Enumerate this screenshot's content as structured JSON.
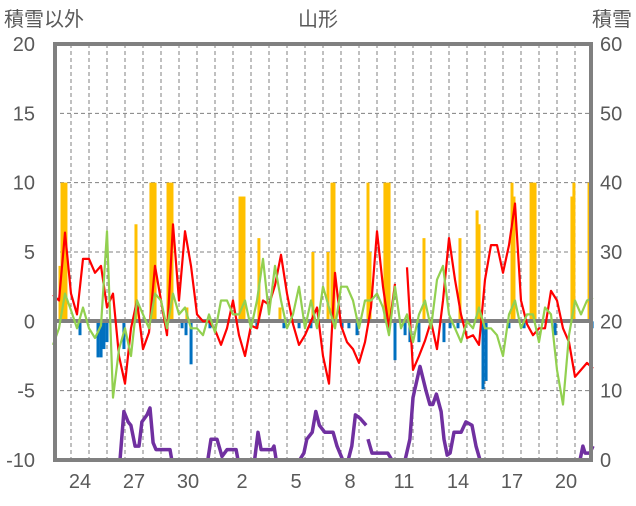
{
  "chart_data": {
    "type": "bar+line",
    "title": "山形",
    "left_axis_label": "積雪以外",
    "right_axis_label": "積雪",
    "left_ylim": [
      -10,
      20
    ],
    "right_ylim": [
      0,
      60
    ],
    "left_ticks": [
      "20",
      "15",
      "10",
      "5",
      "0",
      "-5",
      "-10"
    ],
    "right_ticks": [
      "60",
      "50",
      "40",
      "30",
      "20",
      "10",
      "0"
    ],
    "x_range_days": [
      0,
      30
    ],
    "x_tick_labels": [
      "24",
      "27",
      "30",
      "2",
      "5",
      "8",
      "11",
      "14",
      "17",
      "20"
    ],
    "x_tick_day_offsets": [
      1.5,
      4.5,
      7.5,
      10.5,
      13.5,
      16.5,
      19.5,
      22.5,
      25.5,
      28.5
    ],
    "grid": true,
    "colors": {
      "red": "#ff0000",
      "green": "#92d050",
      "orange": "#ffc000",
      "blue": "#0070c0",
      "purple": "#7030a0",
      "axis": "#808080"
    },
    "series": [
      {
        "name": "red-line",
        "axis": "left",
        "values": [
          1.9,
          1.5,
          6.4,
          2,
          0.5,
          4.5,
          4.5,
          3.5,
          4,
          1,
          2,
          -2.5,
          -4.5,
          -0.5,
          1.5,
          -2,
          -0.8,
          4,
          1.5,
          -1,
          7,
          1.5,
          6.5,
          4,
          0.5,
          0,
          0,
          -0.6,
          -1.7,
          -0.5,
          1.5,
          -1,
          -2.5,
          -0.3,
          -0.5,
          1.5,
          1.2,
          2.6,
          4.8,
          2,
          -0.2,
          -1.7,
          -1,
          0,
          1,
          -2.5,
          -4.5,
          3.5,
          -0.3,
          -1.5,
          -2,
          -3,
          -1.5,
          1,
          6.5,
          2.5,
          -0.5,
          2.7,
          null,
          3.9,
          -3.5,
          -2.5,
          -1.4,
          0,
          -2,
          1.5,
          6,
          3,
          0.5,
          -1.2,
          -1,
          -1.7,
          3,
          5.5,
          5.5,
          3.5,
          5.5,
          8.5,
          1.5,
          -0.2,
          -1,
          -0.5,
          -0.5,
          2.2,
          1.5,
          -0.5,
          -1.5,
          -4,
          -3.5,
          -3,
          -3.4
        ]
      },
      {
        "name": "green-line",
        "axis": "left",
        "values": [
          -1.7,
          -0.5,
          2,
          0.8,
          -0.5,
          1,
          -0.5,
          -1.2,
          -0.3,
          6.5,
          -5.5,
          -2,
          -0.5,
          -2.5,
          1.5,
          0.5,
          -0.5,
          2,
          1.5,
          -0.5,
          2,
          0.5,
          1,
          -0.5,
          -0.5,
          -1,
          0.5,
          -0.8,
          1.5,
          1.5,
          0.5,
          0.5,
          1.5,
          -0.5,
          1.5,
          4.5,
          0.5,
          4,
          1.5,
          -0.5,
          0.5,
          2.5,
          -0.5,
          1.5,
          -0.5,
          2.5,
          1,
          -0.5,
          2.5,
          2.5,
          1.5,
          -0.5,
          1.5,
          1.5,
          2,
          1,
          -1,
          2.5,
          -0.5,
          0.5,
          -1.5,
          0.5,
          1.5,
          -0.5,
          3,
          4,
          0.5,
          -0.5,
          -1.5,
          0,
          -0.5,
          1,
          -0.5,
          -0.5,
          -1,
          -2.5,
          0.5,
          1.5,
          -0.5,
          0.5,
          0.5,
          -1.5,
          1,
          0.5,
          -3.5,
          -6,
          -1,
          1.5,
          0.5,
          1.5,
          1.7
        ]
      },
      {
        "name": "orange-bars",
        "axis": "left",
        "points": [
          [
            0.39,
            4
          ],
          [
            0.5,
            10
          ],
          [
            0.61,
            10
          ],
          [
            0.72,
            10
          ],
          [
            4.61,
            7
          ],
          [
            5.44,
            10
          ],
          [
            5.56,
            10
          ],
          [
            5.67,
            10
          ],
          [
            6.39,
            10
          ],
          [
            6.5,
            10
          ],
          [
            6.61,
            10
          ],
          [
            7.44,
            1
          ],
          [
            10.39,
            9
          ],
          [
            10.5,
            9
          ],
          [
            10.61,
            9
          ],
          [
            11.44,
            6
          ],
          [
            12.61,
            1
          ],
          [
            14.44,
            5
          ],
          [
            15.28,
            5
          ],
          [
            15.5,
            10
          ],
          [
            15.61,
            10
          ],
          [
            17.5,
            10
          ],
          [
            17.61,
            5
          ],
          [
            18.44,
            10
          ],
          [
            18.56,
            10
          ],
          [
            18.67,
            10
          ],
          [
            20.61,
            6
          ],
          [
            22.61,
            6
          ],
          [
            23.56,
            8
          ],
          [
            23.67,
            7
          ],
          [
            25.5,
            10
          ],
          [
            25.61,
            9
          ],
          [
            26.56,
            10
          ],
          [
            26.67,
            10
          ],
          [
            26.78,
            10
          ],
          [
            28.83,
            9
          ],
          [
            28.94,
            10
          ],
          [
            29.78,
            10
          ]
        ]
      },
      {
        "name": "blue-bars",
        "axis": "left",
        "points": [
          [
            1.5,
            -1
          ],
          [
            2.5,
            -2.6
          ],
          [
            2.67,
            -2.6
          ],
          [
            2.83,
            -2
          ],
          [
            3,
            -1.5
          ],
          [
            3.94,
            -2
          ],
          [
            7.17,
            -0.5
          ],
          [
            7.39,
            -1
          ],
          [
            7.67,
            -3.1
          ],
          [
            8.72,
            -0.5
          ],
          [
            11.33,
            -0.5
          ],
          [
            12.83,
            -0.5
          ],
          [
            13.67,
            -0.5
          ],
          [
            14.33,
            -0.5
          ],
          [
            16.06,
            -0.5
          ],
          [
            16.44,
            -0.5
          ],
          [
            16.89,
            -1
          ],
          [
            19,
            -2.8
          ],
          [
            19.56,
            -1
          ],
          [
            19.83,
            -1.5
          ],
          [
            20.33,
            -1.5
          ],
          [
            21.72,
            -1.5
          ],
          [
            22.06,
            -0.5
          ],
          [
            22.5,
            -0.5
          ],
          [
            23.89,
            -4.9
          ],
          [
            24.06,
            -4.3
          ],
          [
            25.33,
            -0.5
          ],
          [
            26.17,
            -0.5
          ],
          [
            27.89,
            -1
          ],
          [
            29.95,
            -0.5
          ]
        ]
      },
      {
        "name": "snow-depth",
        "axis": "right",
        "points": [
          [
            0,
            0
          ],
          [
            3.72,
            0
          ],
          [
            3.94,
            7
          ],
          [
            4.17,
            5.5
          ],
          [
            4.33,
            5
          ],
          [
            4.56,
            2
          ],
          [
            4.78,
            2
          ],
          [
            4.94,
            5.5
          ],
          [
            5.22,
            6.5
          ],
          [
            5.39,
            7.5
          ],
          [
            5.56,
            2.5
          ],
          [
            5.72,
            1.5
          ],
          [
            6.5,
            1.5
          ],
          [
            6.6,
            0
          ],
          [
            8.6,
            0
          ],
          [
            8.78,
            3
          ],
          [
            9.11,
            3
          ],
          [
            9.39,
            0.5
          ],
          [
            9.67,
            1.5
          ],
          [
            10.17,
            1.5
          ],
          [
            10.28,
            0
          ],
          [
            11.2,
            0
          ],
          [
            11.39,
            4
          ],
          [
            11.56,
            1.5
          ],
          [
            12.17,
            1.5
          ],
          [
            12.28,
            2
          ],
          [
            12.4,
            0
          ],
          [
            13.7,
            0
          ],
          [
            13.94,
            1
          ],
          [
            14.1,
            3
          ],
          [
            14.4,
            4
          ],
          [
            14.6,
            7
          ],
          [
            14.8,
            5
          ],
          [
            15.1,
            4
          ],
          [
            15.56,
            4
          ],
          [
            15.78,
            2
          ],
          [
            15.94,
            1
          ],
          [
            16.1,
            0
          ],
          [
            16.4,
            0
          ],
          [
            16.6,
            2
          ],
          [
            16.8,
            6.5
          ],
          [
            17.06,
            6
          ],
          [
            17.4,
            5
          ],
          null,
          [
            17.5,
            3
          ],
          [
            17.72,
            1
          ],
          [
            18.6,
            1
          ],
          [
            18.83,
            0
          ],
          null,
          [
            19.56,
            0
          ],
          [
            19.83,
            3
          ],
          [
            20,
            9
          ],
          [
            20.39,
            13.5
          ],
          [
            20.72,
            10
          ],
          [
            20.94,
            8
          ],
          [
            21.1,
            8
          ],
          [
            21.3,
            9.5
          ],
          [
            21.56,
            7
          ],
          [
            21.72,
            3
          ],
          [
            21.9,
            0.7
          ],
          [
            22.06,
            1
          ],
          [
            22.28,
            4
          ],
          [
            22.5,
            4
          ],
          [
            22.67,
            4
          ],
          [
            22.94,
            5.5
          ],
          [
            23.28,
            5
          ],
          [
            23.5,
            2
          ],
          [
            23.72,
            0
          ],
          [
            29.28,
            0
          ],
          [
            29.44,
            2
          ],
          [
            29.56,
            1
          ],
          [
            29.83,
            1
          ],
          [
            30,
            2
          ]
        ]
      }
    ]
  }
}
